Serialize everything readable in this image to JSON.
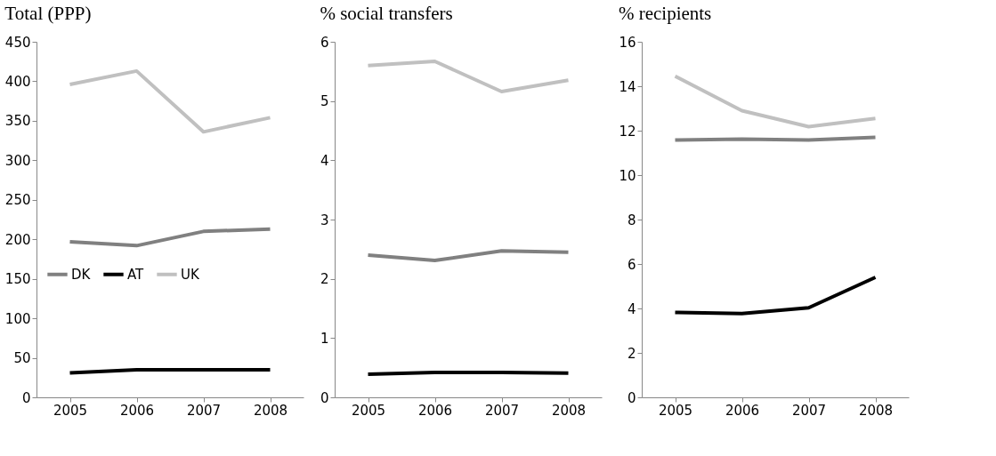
{
  "chart_data": [
    {
      "type": "line",
      "title": "Total (PPP)",
      "categories": [
        "2005",
        "2006",
        "2007",
        "2008"
      ],
      "ylim": [
        0,
        450
      ],
      "yticks": [
        0,
        50,
        100,
        150,
        200,
        250,
        300,
        350,
        400,
        450
      ],
      "grid": false,
      "legend": "left",
      "marker": "none",
      "line_style": "solid",
      "series": [
        {
          "name": "DK",
          "color": "#808080",
          "values": [
            197,
            192,
            210,
            213
          ]
        },
        {
          "name": "AT",
          "color": "#000000",
          "values": [
            31,
            35,
            35,
            35
          ]
        },
        {
          "name": "UK",
          "color": "#c0c0c0",
          "values": [
            396,
            413,
            336,
            354
          ]
        }
      ]
    },
    {
      "type": "line",
      "title": "% social transfers",
      "categories": [
        "2005",
        "2006",
        "2007",
        "2008"
      ],
      "ylim": [
        0,
        6
      ],
      "yticks": [
        0,
        1,
        2,
        3,
        4,
        5,
        6
      ],
      "grid": false,
      "marker": "none",
      "line_style": "solid",
      "series": [
        {
          "color": "#808080",
          "values": [
            2.4,
            2.31,
            2.47,
            2.45
          ]
        },
        {
          "color": "#000000",
          "values": [
            0.39,
            0.42,
            0.42,
            0.41
          ]
        },
        {
          "color": "#c0c0c0",
          "values": [
            5.6,
            5.67,
            5.16,
            5.35
          ]
        }
      ]
    },
    {
      "type": "line",
      "title": "% recipients",
      "categories": [
        "2005",
        "2006",
        "2007",
        "2008"
      ],
      "ylim": [
        0,
        16
      ],
      "yticks": [
        0,
        2,
        4,
        6,
        8,
        10,
        12,
        14,
        16
      ],
      "grid": false,
      "marker": "none",
      "line_style": "solid",
      "series": [
        {
          "color": "#808080",
          "values": [
            11.58,
            11.62,
            11.58,
            11.7
          ]
        },
        {
          "color": "#000000",
          "values": [
            3.82,
            3.77,
            4.03,
            5.4
          ]
        },
        {
          "color": "#c0c0c0",
          "values": [
            14.45,
            12.9,
            12.18,
            12.55
          ]
        }
      ]
    }
  ]
}
